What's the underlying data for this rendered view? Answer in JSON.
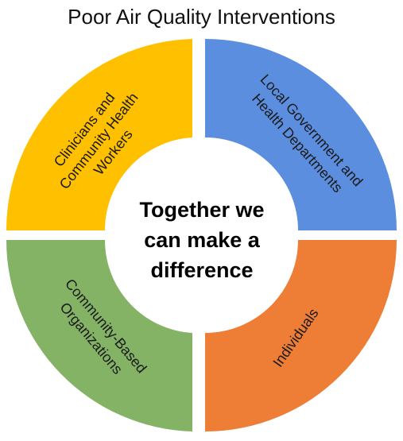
{
  "title": "Poor Air Quality Interventions",
  "center": {
    "lines": [
      "Together we",
      "can make a",
      "difference"
    ]
  },
  "segments": [
    {
      "id": "local-government",
      "lines": [
        "Local Government and",
        "Health Departments"
      ],
      "color": "#5B8EDE"
    },
    {
      "id": "individuals",
      "lines": [
        "Individuals"
      ],
      "color": "#EE7D35"
    },
    {
      "id": "community-based",
      "lines": [
        "Community-Based",
        "Organizations"
      ],
      "color": "#84B366"
    },
    {
      "id": "clinicians",
      "lines": [
        "Clinicians and",
        "Community Health",
        "Workers"
      ],
      "color": "#FFC000"
    }
  ]
}
